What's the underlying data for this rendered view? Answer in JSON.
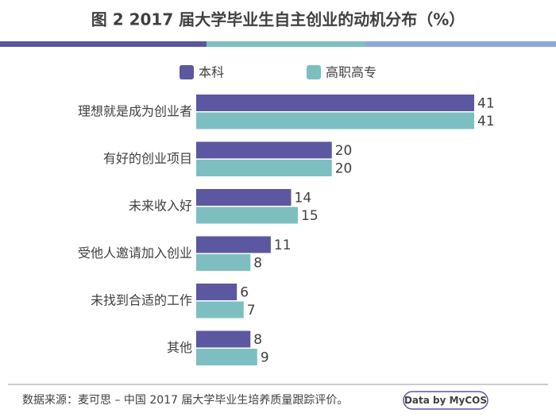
{
  "chart_data": {
    "type": "bar",
    "orientation": "horizontal",
    "title": "图 2  2017 届大学毕业生自主创业的动机分布（%）",
    "categories": [
      "理想就是成为创业者",
      "有好的创业项目",
      "未来收入好",
      "受他人邀请加入创业",
      "未找到合适的工作",
      "其他"
    ],
    "series": [
      {
        "name": "本科",
        "color": "#5b57a0",
        "values": [
          41,
          20,
          14,
          11,
          6,
          8
        ]
      },
      {
        "name": "高职高专",
        "color": "#7dbfc1",
        "values": [
          41,
          20,
          15,
          8,
          7,
          9
        ]
      }
    ],
    "source": "数据来源：麦可思 – 中国 2017 届大学毕业生培养质量跟踪评价。",
    "badge": "Data by MyCOS"
  }
}
